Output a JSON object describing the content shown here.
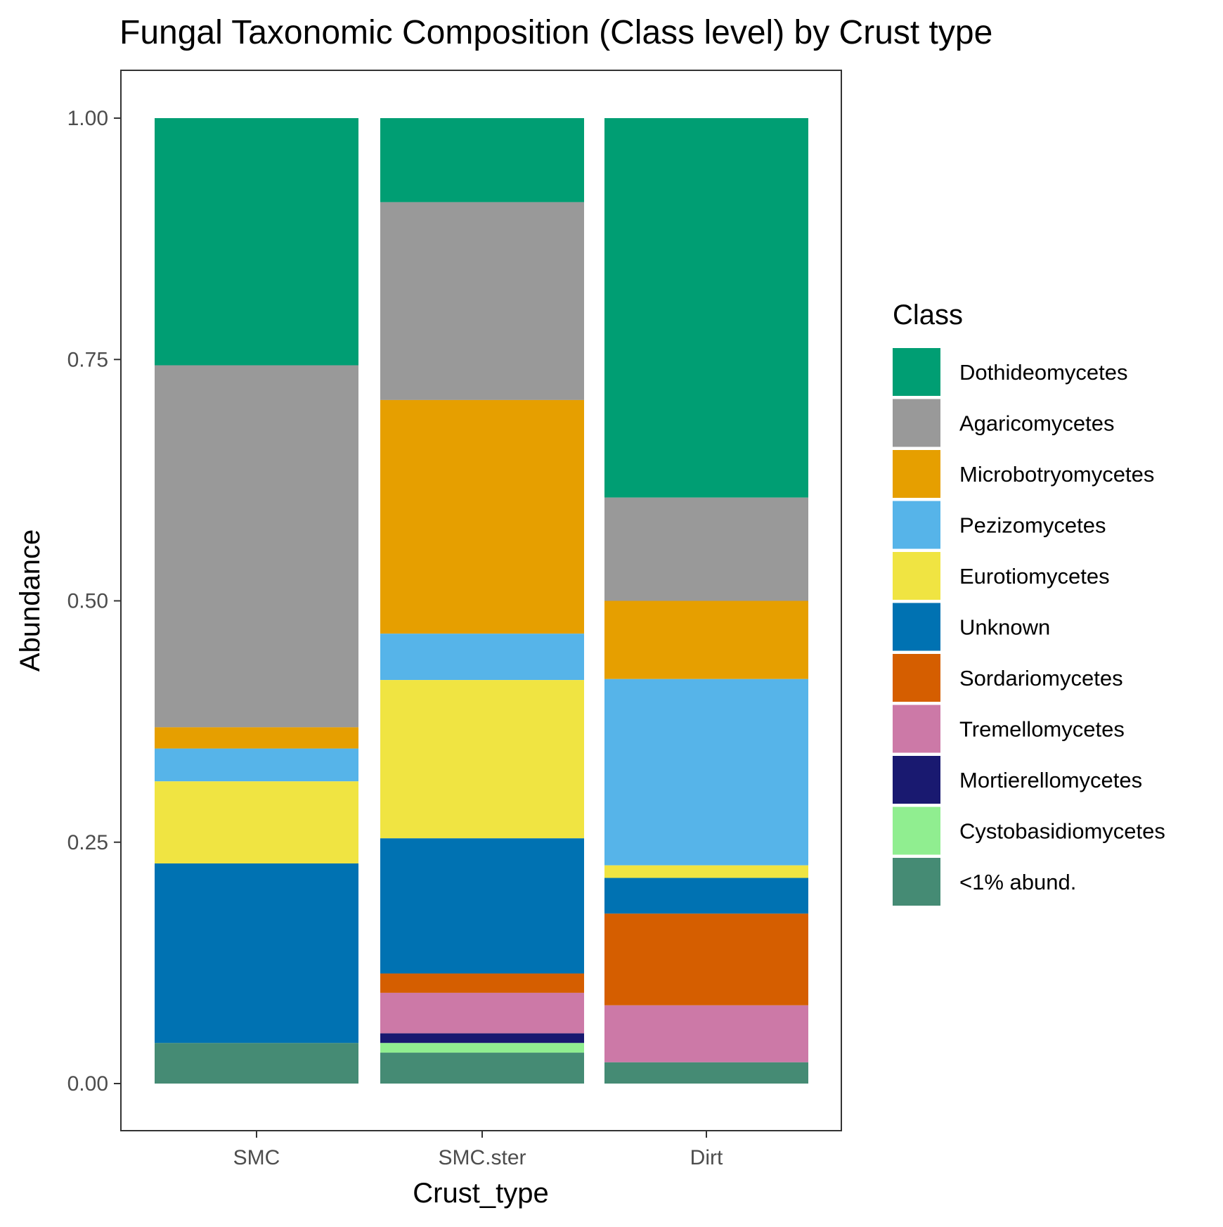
{
  "chart_data": {
    "type": "bar",
    "stacked": true,
    "title": "Fungal Taxonomic Composition (Class level) by Crust type",
    "xlabel": "Crust_type",
    "ylabel": "Abundance",
    "categories": [
      "SMC",
      "SMC.ster",
      "Dirt"
    ],
    "ylim": [
      0,
      1
    ],
    "yticks": [
      "0.00",
      "0.25",
      "0.50",
      "0.75",
      "1.00"
    ],
    "ytick_values": [
      0,
      0.25,
      0.5,
      0.75,
      1.0
    ],
    "grid": false,
    "legend_title": "Class",
    "legend_position": "right",
    "series": [
      {
        "name": "Dothideomycetes",
        "color": "#009E73",
        "values": [
          0.256,
          0.087,
          0.393
        ]
      },
      {
        "name": "Agaricomycetes",
        "color": "#999999",
        "values": [
          0.375,
          0.205,
          0.107
        ]
      },
      {
        "name": "Microbotryomycetes",
        "color": "#E69F00",
        "values": [
          0.022,
          0.242,
          0.081
        ]
      },
      {
        "name": "Pezizomycetes",
        "color": "#56B4E9",
        "values": [
          0.034,
          0.048,
          0.193
        ]
      },
      {
        "name": "Eurotiomycetes",
        "color": "#F0E442",
        "values": [
          0.085,
          0.164,
          0.013
        ]
      },
      {
        "name": "Unknown",
        "color": "#0072B2",
        "values": [
          0.186,
          0.14,
          0.037
        ]
      },
      {
        "name": "Sordariomycetes",
        "color": "#D55E00",
        "values": [
          0.0,
          0.02,
          0.095
        ]
      },
      {
        "name": "Tremellomycetes",
        "color": "#CC79A7",
        "values": [
          0.0,
          0.042,
          0.059
        ]
      },
      {
        "name": "Mortierellomycetes",
        "color": "#191970",
        "values": [
          0.0,
          0.01,
          0.0
        ]
      },
      {
        "name": "Cystobasidiomycetes",
        "color": "#90EE90",
        "values": [
          0.0,
          0.01,
          0.0
        ]
      },
      {
        "name": "<1% abund.",
        "color": "#458B74",
        "values": [
          0.042,
          0.032,
          0.022
        ]
      }
    ]
  }
}
